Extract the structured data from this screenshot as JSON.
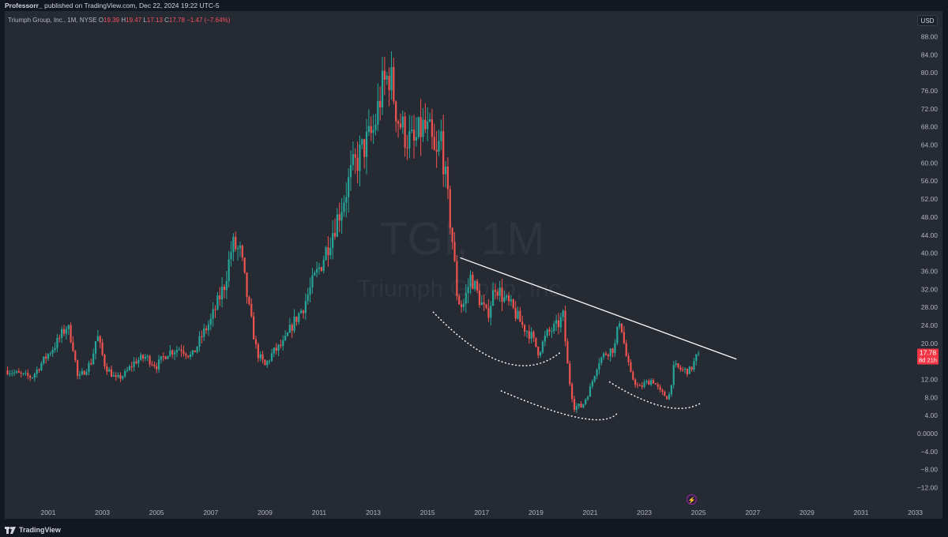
{
  "publish_bar": {
    "author": "Professorr_",
    "text": "published on TradingView.com, Dec 22, 2024 19:22 UTC-5"
  },
  "legend": {
    "symbol": "Triumph Group, Inc., 1M, NYSE",
    "open_label": "O",
    "open": "19.39",
    "high_label": "H",
    "high": "19.47",
    "low_label": "L",
    "low": "17.13",
    "close_label": "C",
    "close": "17.78",
    "change": "−1.47 (−7.64%)"
  },
  "currency": "USD",
  "price_tag": {
    "price": "17.78",
    "countdown": "8d 21h"
  },
  "watermark": {
    "symbol": "TGI, 1M",
    "name": "Triumph Group, Inc."
  },
  "footer": {
    "brand": "TradingView"
  },
  "colors": {
    "background": "#262a33",
    "up": "#26a69a",
    "down": "#ef5350",
    "trendline": "#ffffff",
    "price_tag": "#f23645"
  },
  "chart_data": {
    "type": "candlestick",
    "interval": "1M",
    "ylim": [
      -14,
      90
    ],
    "y_ticks": [
      "88.00",
      "84.00",
      "80.00",
      "76.00",
      "72.00",
      "68.00",
      "64.00",
      "60.00",
      "56.00",
      "52.00",
      "48.00",
      "44.00",
      "40.00",
      "36.00",
      "32.00",
      "28.00",
      "24.00",
      "20.00",
      "16.00",
      "12.00",
      "8.00",
      "4.00",
      "0.0000",
      "−4.00",
      "−8.00",
      "−12.00"
    ],
    "x_ticks": [
      "2001",
      "2003",
      "2005",
      "2007",
      "2009",
      "2011",
      "2013",
      "2015",
      "2017",
      "2019",
      "2021",
      "2023",
      "2025",
      "2027",
      "2029",
      "2031",
      "2033"
    ],
    "x_range": [
      1999.5,
      2033.8
    ],
    "price_path": [
      [
        1999.5,
        14
      ],
      [
        2000.0,
        13
      ],
      [
        2000.4,
        12.5
      ],
      [
        2000.8,
        16
      ],
      [
        2001.3,
        20
      ],
      [
        2001.7,
        24
      ],
      [
        2001.9,
        20
      ],
      [
        2002.1,
        12
      ],
      [
        2002.6,
        16
      ],
      [
        2002.8,
        22
      ],
      [
        2003.1,
        15
      ],
      [
        2003.5,
        12
      ],
      [
        2003.8,
        13
      ],
      [
        2004.2,
        16
      ],
      [
        2004.6,
        17
      ],
      [
        2005.0,
        15
      ],
      [
        2005.4,
        18
      ],
      [
        2005.9,
        19
      ],
      [
        2006.3,
        17
      ],
      [
        2006.7,
        22
      ],
      [
        2007.0,
        25
      ],
      [
        2007.5,
        33
      ],
      [
        2007.8,
        42
      ],
      [
        2008.1,
        40
      ],
      [
        2008.4,
        28
      ],
      [
        2008.7,
        18
      ],
      [
        2009.0,
        15
      ],
      [
        2009.3,
        18
      ],
      [
        2009.7,
        20
      ],
      [
        2010.0,
        24
      ],
      [
        2010.4,
        28
      ],
      [
        2010.8,
        34
      ],
      [
        2011.1,
        38
      ],
      [
        2011.5,
        45
      ],
      [
        2011.8,
        50
      ],
      [
        2012.2,
        58
      ],
      [
        2012.6,
        63
      ],
      [
        2013.0,
        67
      ],
      [
        2013.3,
        76
      ],
      [
        2013.6,
        80
      ],
      [
        2013.9,
        70
      ],
      [
        2014.2,
        66
      ],
      [
        2014.5,
        64
      ],
      [
        2014.8,
        68
      ],
      [
        2015.1,
        66
      ],
      [
        2015.3,
        60
      ],
      [
        2015.5,
        66
      ],
      [
        2015.7,
        54
      ],
      [
        2015.9,
        44
      ],
      [
        2016.1,
        30
      ],
      [
        2016.3,
        28
      ],
      [
        2016.6,
        35
      ],
      [
        2016.9,
        30
      ],
      [
        2017.2,
        26
      ],
      [
        2017.5,
        33
      ],
      [
        2017.8,
        30
      ],
      [
        2018.1,
        28
      ],
      [
        2018.5,
        24
      ],
      [
        2018.8,
        22
      ],
      [
        2019.1,
        18
      ],
      [
        2019.4,
        22
      ],
      [
        2019.8,
        24
      ],
      [
        2020.0,
        26
      ],
      [
        2020.2,
        13
      ],
      [
        2020.4,
        6
      ],
      [
        2020.7,
        6
      ],
      [
        2021.0,
        10
      ],
      [
        2021.3,
        16
      ],
      [
        2021.6,
        18
      ],
      [
        2021.9,
        19
      ],
      [
        2022.1,
        26
      ],
      [
        2022.3,
        18
      ],
      [
        2022.5,
        13
      ],
      [
        2022.8,
        10
      ],
      [
        2023.0,
        11
      ],
      [
        2023.3,
        12
      ],
      [
        2023.6,
        9
      ],
      [
        2023.9,
        8
      ],
      [
        2024.1,
        15
      ],
      [
        2024.4,
        14
      ],
      [
        2024.7,
        14
      ],
      [
        2025.0,
        18
      ]
    ],
    "last_close": 17.78,
    "trendline": [
      [
        2016.2,
        39.0
      ],
      [
        2026.4,
        16.5
      ]
    ],
    "arcs": [
      {
        "from": [
          2015.2,
          27.0
        ],
        "mid": [
          2017.8,
          15.8
        ],
        "to": [
          2019.9,
          18.0
        ]
      },
      {
        "from": [
          2017.7,
          9.5
        ],
        "mid": [
          2020.6,
          3.5
        ],
        "to": [
          2022.0,
          4.5
        ]
      },
      {
        "from": [
          2021.7,
          11.5
        ],
        "mid": [
          2023.7,
          6.0
        ],
        "to": [
          2025.1,
          6.8
        ]
      }
    ]
  }
}
